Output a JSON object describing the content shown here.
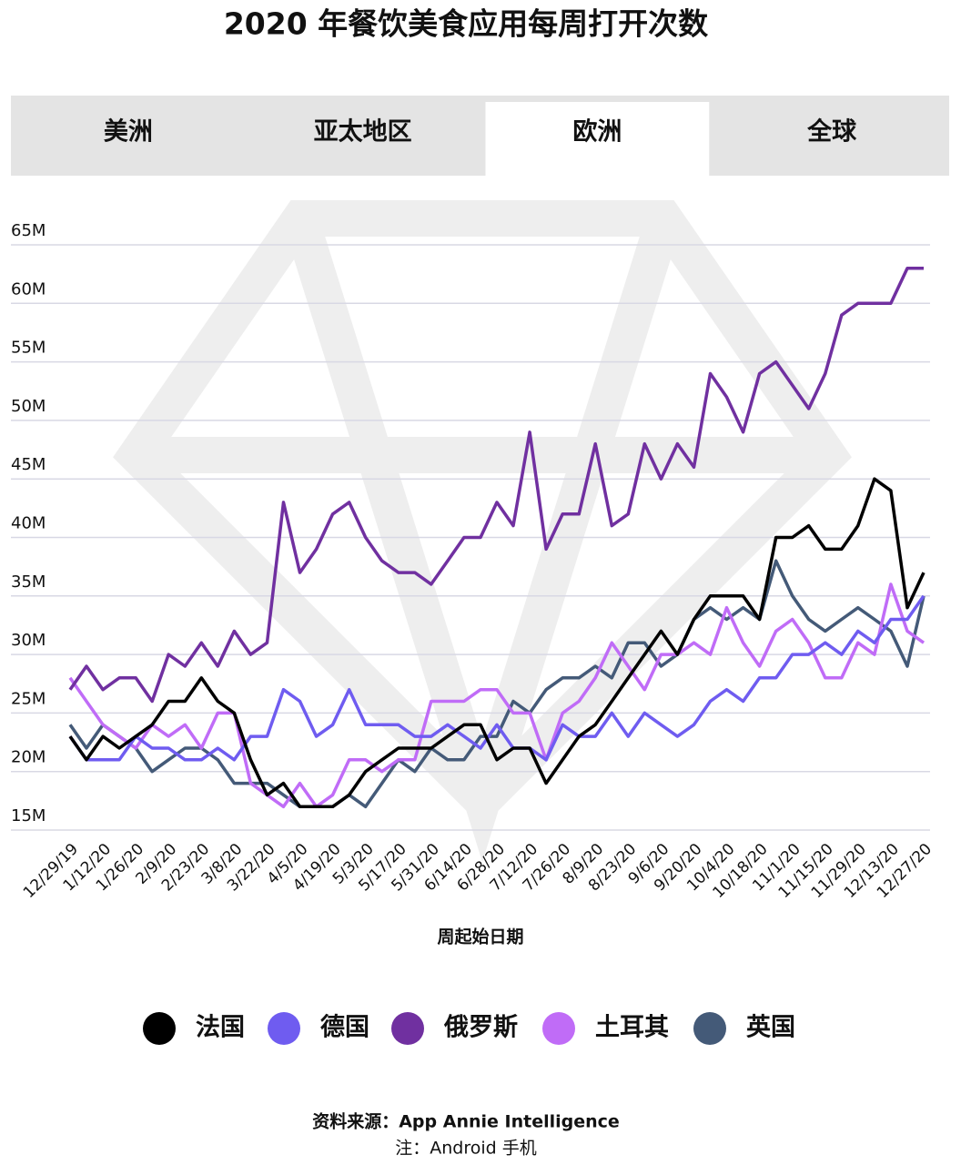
{
  "title": "2020 年餐饮美食应用每周打开次数",
  "tabs": [
    "美洲",
    "亚太地区",
    "欧洲",
    "全球"
  ],
  "active_tab": "欧洲",
  "chart_data": {
    "type": "line",
    "x_label": "周起始日期",
    "categories": [
      "12/29/19",
      null,
      "1/12/20",
      null,
      "1/26/20",
      null,
      "2/9/20",
      null,
      "2/23/20",
      null,
      "3/8/20",
      null,
      "3/22/20",
      null,
      "4/5/20",
      null,
      "4/19/20",
      null,
      "5/3/20",
      null,
      "5/17/20",
      null,
      "5/31/20",
      null,
      "6/14/20",
      null,
      "6/28/20",
      null,
      "7/12/20",
      null,
      "7/26/20",
      null,
      "8/9/20",
      null,
      "8/23/20",
      null,
      "9/6/20",
      null,
      "9/20/20",
      null,
      "10/4/20",
      null,
      "10/18/20",
      null,
      "11/1/20",
      null,
      "11/15/20",
      null,
      "11/29/20",
      null,
      "12/13/20",
      null,
      "12/27/20"
    ],
    "ylim": [
      15,
      65
    ],
    "yticks": [
      {
        "value": 15,
        "label": "15M"
      },
      {
        "value": 20,
        "label": "20M"
      },
      {
        "value": 25,
        "label": "25M"
      },
      {
        "value": 30,
        "label": "30M"
      },
      {
        "value": 35,
        "label": "35M"
      },
      {
        "value": 40,
        "label": "40M"
      },
      {
        "value": 45,
        "label": "45M"
      },
      {
        "value": 50,
        "label": "50M"
      },
      {
        "value": 55,
        "label": "55M"
      },
      {
        "value": 60,
        "label": "60M"
      },
      {
        "value": 65,
        "label": "65M"
      }
    ],
    "grid": true,
    "series": [
      {
        "name": "法国",
        "color": "#000000",
        "values": [
          23,
          21,
          23,
          22,
          23,
          24,
          26,
          26,
          28,
          26,
          25,
          21,
          18,
          19,
          17,
          17,
          17,
          18,
          20,
          21,
          22,
          22,
          22,
          23,
          24,
          24,
          21,
          22,
          22,
          19,
          21,
          23,
          24,
          26,
          28,
          30,
          32,
          30,
          33,
          35,
          35,
          35,
          33,
          40,
          40,
          41,
          39,
          39,
          41,
          45,
          44,
          34,
          37
        ]
      },
      {
        "name": "德国",
        "color": "#6f5cf0",
        "values": [
          23,
          21,
          21,
          21,
          23,
          22,
          22,
          21,
          21,
          22,
          21,
          23,
          23,
          27,
          26,
          23,
          24,
          27,
          24,
          24,
          24,
          23,
          23,
          24,
          23,
          22,
          24,
          22,
          22,
          21,
          24,
          23,
          23,
          25,
          23,
          25,
          24,
          23,
          24,
          26,
          27,
          26,
          28,
          28,
          30,
          30,
          31,
          30,
          32,
          31,
          33,
          33,
          35
        ]
      },
      {
        "name": "俄罗斯",
        "color": "#7030a0",
        "values": [
          27,
          29,
          27,
          28,
          28,
          26,
          30,
          29,
          31,
          29,
          32,
          30,
          31,
          43,
          37,
          39,
          42,
          43,
          40,
          38,
          37,
          37,
          36,
          38,
          40,
          40,
          43,
          41,
          49,
          39,
          42,
          42,
          48,
          41,
          42,
          48,
          45,
          48,
          46,
          54,
          52,
          49,
          54,
          55,
          53,
          51,
          54,
          59,
          60,
          60,
          60,
          63,
          63
        ]
      },
      {
        "name": "土耳其",
        "color": "#c06cf7",
        "values": [
          28,
          26,
          24,
          23,
          22,
          24,
          23,
          24,
          22,
          25,
          25,
          19,
          18,
          17,
          19,
          17,
          18,
          21,
          21,
          20,
          21,
          21,
          26,
          26,
          26,
          27,
          27,
          25,
          25,
          21,
          25,
          26,
          28,
          31,
          29,
          27,
          30,
          30,
          31,
          30,
          34,
          31,
          29,
          32,
          33,
          31,
          28,
          28,
          31,
          30,
          36,
          32,
          31
        ]
      },
      {
        "name": "英国",
        "color": "#445a78",
        "values": [
          24,
          22,
          24,
          23,
          22,
          20,
          21,
          22,
          22,
          21,
          19,
          19,
          19,
          18,
          17,
          17,
          17,
          18,
          17,
          19,
          21,
          20,
          22,
          21,
          21,
          23,
          23,
          26,
          25,
          27,
          28,
          28,
          29,
          28,
          31,
          31,
          29,
          30,
          33,
          34,
          33,
          34,
          33,
          38,
          35,
          33,
          32,
          33,
          34,
          33,
          32,
          29,
          35
        ]
      }
    ]
  },
  "footer": {
    "source": "资料来源：App Annie Intelligence",
    "note": "注：Android 手机"
  }
}
